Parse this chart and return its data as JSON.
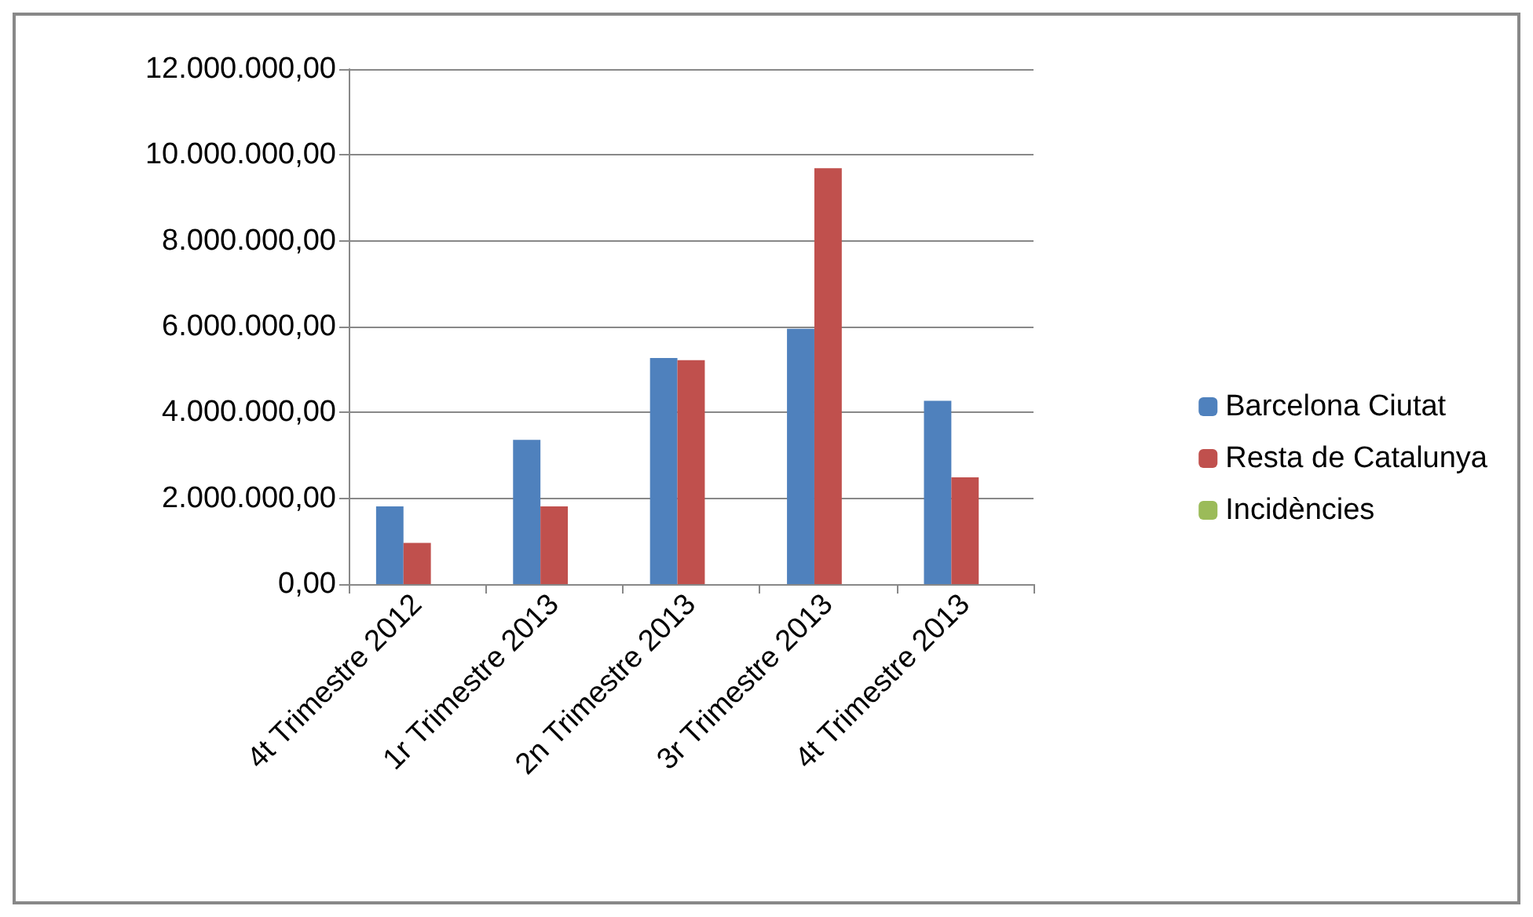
{
  "chart_data": {
    "type": "bar",
    "categories": [
      "4t Trimestre 2012",
      "1r Trimestre 2013",
      "2n Trimestre 2013",
      "3r Trimestre 2013",
      "4t Trimestre 2013"
    ],
    "series": [
      {
        "name": "Barcelona Ciutat",
        "color": "#4f81bd",
        "values": [
          1810000,
          3360000,
          5270000,
          5950000,
          4270000
        ]
      },
      {
        "name": "Resta de Catalunya",
        "color": "#c0504d",
        "values": [
          960000,
          1810000,
          5220000,
          9690000,
          2490000
        ]
      },
      {
        "name": "Incidències",
        "color": "#9bbb59",
        "values": [
          0,
          0,
          0,
          0,
          0
        ]
      }
    ],
    "ylim": [
      0,
      12000000
    ],
    "yticks": [
      {
        "value": 0,
        "label": "0,00"
      },
      {
        "value": 2000000,
        "label": "2.000.000,00"
      },
      {
        "value": 4000000,
        "label": "4.000.000,00"
      },
      {
        "value": 6000000,
        "label": "6.000.000,00"
      },
      {
        "value": 8000000,
        "label": "8.000.000,00"
      },
      {
        "value": 10000000,
        "label": "10.000.000,00"
      },
      {
        "value": 12000000,
        "label": "12.000.000,00"
      }
    ],
    "grid": "y",
    "legend": "right"
  }
}
